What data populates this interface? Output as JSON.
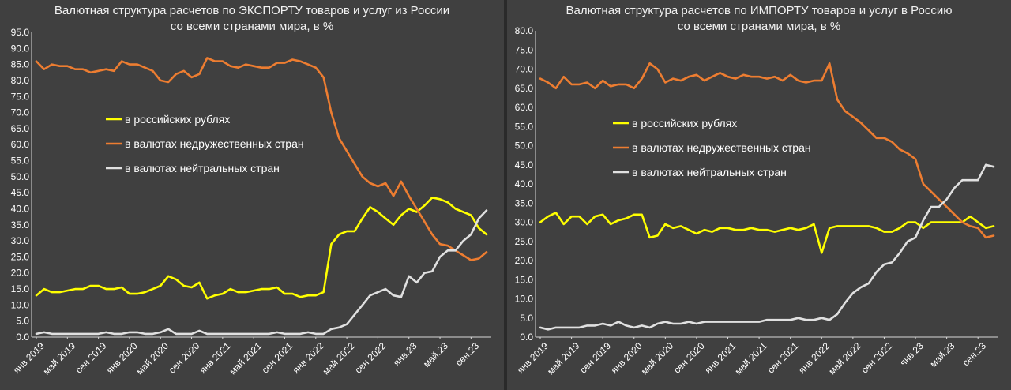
{
  "chart_data": [
    {
      "type": "line",
      "title": "Валютная структура расчетов по ЭКСПОРТУ товаров и услуг из России",
      "subtitle": "со всеми странами мира, в %",
      "ylim": [
        0,
        95
      ],
      "yticks": [
        "0.0",
        "5.0",
        "10.0",
        "15.0",
        "20.0",
        "25.0",
        "30.0",
        "35.0",
        "40.0",
        "45.0",
        "50.0",
        "55.0",
        "60.0",
        "65.0",
        "70.0",
        "75.0",
        "80.0",
        "85.0",
        "90.0",
        "95.0"
      ],
      "xticks": [
        "янв 2019",
        "май 2019",
        "сен 2019",
        "янв 2020",
        "май 2020",
        "сен 2020",
        "янв 2021",
        "май 2021",
        "сен 2021",
        "янв 2022",
        "май 2022",
        "сен 2022",
        "янв.23",
        "май.23",
        "сен.23"
      ],
      "x": [
        "2019-01",
        "2019-02",
        "2019-03",
        "2019-04",
        "2019-05",
        "2019-06",
        "2019-07",
        "2019-08",
        "2019-09",
        "2019-10",
        "2019-11",
        "2019-12",
        "2020-01",
        "2020-02",
        "2020-03",
        "2020-04",
        "2020-05",
        "2020-06",
        "2020-07",
        "2020-08",
        "2020-09",
        "2020-10",
        "2020-11",
        "2020-12",
        "2021-01",
        "2021-02",
        "2021-03",
        "2021-04",
        "2021-05",
        "2021-06",
        "2021-07",
        "2021-08",
        "2021-09",
        "2021-10",
        "2021-11",
        "2021-12",
        "2022-01",
        "2022-02",
        "2022-03",
        "2022-04",
        "2022-05",
        "2022-06",
        "2022-07",
        "2022-08",
        "2022-09",
        "2022-10",
        "2022-11",
        "2022-12",
        "2023-01",
        "2023-02",
        "2023-03",
        "2023-04",
        "2023-05",
        "2023-06",
        "2023-07",
        "2023-08",
        "2023-09",
        "2023-10",
        "2023-11"
      ],
      "legend_position": "center-left",
      "grid": false,
      "series": [
        {
          "name": "в российских рублях",
          "color": "#ffff00",
          "values": [
            13,
            15,
            14,
            14,
            14.5,
            15,
            15,
            16,
            16,
            15,
            15,
            15.5,
            13.5,
            13.5,
            14,
            15,
            16,
            19,
            18,
            16,
            15.5,
            17,
            12,
            13,
            13.5,
            15,
            14,
            14,
            14.5,
            15,
            15,
            15.5,
            13.5,
            13.5,
            12.5,
            13,
            13,
            14,
            29,
            32,
            33,
            33,
            37,
            40.5,
            39,
            37,
            35,
            38,
            40,
            39,
            41,
            43.5,
            43,
            42,
            40,
            39,
            38,
            34,
            32
          ]
        },
        {
          "name": "в валютах недружественных стран",
          "color": "#ed7d31",
          "values": [
            86,
            83.5,
            85,
            84.5,
            84.5,
            83.5,
            83.5,
            82.5,
            83,
            83.5,
            83,
            86,
            85,
            85,
            84,
            83,
            80,
            79.5,
            82,
            83,
            81,
            82,
            87,
            86,
            86,
            84.5,
            84,
            85,
            84.5,
            84,
            84,
            85.5,
            85.5,
            86.5,
            86,
            85,
            84,
            81,
            70,
            62,
            58,
            54,
            50,
            48,
            47,
            48,
            44,
            48.5,
            44,
            40,
            36,
            32,
            29,
            28.5,
            27,
            25.5,
            24,
            24.5,
            26.5
          ]
        },
        {
          "name": "в валютах нейтральных стран",
          "color": "#e0e0e0",
          "values": [
            1,
            1.5,
            1,
            1,
            1,
            1,
            1,
            1,
            1,
            1.5,
            1,
            1,
            1.5,
            1.5,
            1,
            1,
            1.5,
            2.5,
            1,
            1,
            1,
            2,
            1,
            1,
            1,
            1,
            1,
            1,
            1,
            1,
            1,
            1.5,
            1,
            1,
            1,
            1.5,
            1,
            1,
            2.5,
            3,
            4,
            7,
            10,
            13,
            14,
            15,
            13,
            12.5,
            19,
            17,
            20,
            20.5,
            25,
            27,
            27,
            30,
            32,
            37,
            39.5
          ]
        }
      ]
    },
    {
      "type": "line",
      "title": "Валютная структура расчетов по ИМПОРТУ товаров и услуг в Россию",
      "subtitle": "со всеми странами мира, в %",
      "ylim": [
        0,
        80
      ],
      "yticks": [
        "0.0",
        "5.0",
        "10.0",
        "15.0",
        "20.0",
        "25.0",
        "30.0",
        "35.0",
        "40.0",
        "45.0",
        "50.0",
        "55.0",
        "60.0",
        "65.0",
        "70.0",
        "75.0",
        "80.0"
      ],
      "xticks": [
        "янв 2019",
        "май 2019",
        "сен 2019",
        "янв 2020",
        "май 2020",
        "сен 2020",
        "янв 2021",
        "май 2021",
        "сен 2021",
        "янв 2022",
        "май 2022",
        "сен 2022",
        "янв.23",
        "май.23",
        "сен.23"
      ],
      "x": [
        "2019-01",
        "2019-02",
        "2019-03",
        "2019-04",
        "2019-05",
        "2019-06",
        "2019-07",
        "2019-08",
        "2019-09",
        "2019-10",
        "2019-11",
        "2019-12",
        "2020-01",
        "2020-02",
        "2020-03",
        "2020-04",
        "2020-05",
        "2020-06",
        "2020-07",
        "2020-08",
        "2020-09",
        "2020-10",
        "2020-11",
        "2020-12",
        "2021-01",
        "2021-02",
        "2021-03",
        "2021-04",
        "2021-05",
        "2021-06",
        "2021-07",
        "2021-08",
        "2021-09",
        "2021-10",
        "2021-11",
        "2021-12",
        "2022-01",
        "2022-02",
        "2022-03",
        "2022-04",
        "2022-05",
        "2022-06",
        "2022-07",
        "2022-08",
        "2022-09",
        "2022-10",
        "2022-11",
        "2022-12",
        "2023-01",
        "2023-02",
        "2023-03",
        "2023-04",
        "2023-05",
        "2023-06",
        "2023-07",
        "2023-08",
        "2023-09",
        "2023-10",
        "2023-11"
      ],
      "legend_position": "center-left",
      "grid": false,
      "series": [
        {
          "name": "в российских рублях",
          "color": "#ffff00",
          "values": [
            30,
            31.5,
            32.5,
            29.5,
            31.5,
            31.5,
            29.5,
            31.5,
            32,
            29.5,
            30.5,
            31,
            32,
            32,
            26,
            26.5,
            29.5,
            28.5,
            29,
            28,
            27,
            28,
            27.5,
            28.5,
            28.5,
            28,
            28,
            28.5,
            28,
            28,
            27.5,
            28,
            28.5,
            28,
            28.5,
            29.5,
            22,
            28.5,
            29,
            29,
            29,
            29,
            29,
            28.5,
            27.5,
            27.5,
            28.5,
            30,
            30,
            28.5,
            30,
            30,
            30,
            30,
            30,
            31.5,
            30,
            28.5,
            29
          ]
        },
        {
          "name": "в валютах недружественных стран",
          "color": "#ed7d31",
          "values": [
            67.5,
            66.5,
            65,
            68,
            66,
            66,
            66.5,
            65,
            67,
            65.5,
            66,
            66,
            65,
            67.5,
            71.5,
            70,
            66.5,
            67.5,
            67,
            68,
            68.5,
            67,
            68,
            69,
            68,
            67.5,
            68.5,
            68,
            68,
            67.5,
            68,
            67,
            68.5,
            67,
            66.5,
            67,
            67,
            71.5,
            62,
            59,
            57.5,
            56,
            54,
            52,
            52,
            51,
            49,
            48,
            46.5,
            40,
            38,
            36,
            34,
            32,
            30,
            29,
            28.5,
            26,
            26.5
          ]
        },
        {
          "name": "в валютах нейтральных стран",
          "color": "#e0e0e0",
          "values": [
            2.5,
            2,
            2.5,
            2.5,
            2.5,
            2.5,
            3,
            3,
            3.5,
            3,
            4,
            3,
            2.5,
            3,
            2.5,
            3.5,
            4,
            3.5,
            3.5,
            4,
            3.5,
            4,
            4,
            4,
            4,
            4,
            4,
            4,
            4,
            4.5,
            4.5,
            4.5,
            4.5,
            5,
            4.5,
            4.5,
            5,
            4.5,
            6,
            9,
            11.5,
            13,
            14,
            17,
            19,
            19.5,
            22,
            25,
            26,
            30.5,
            34,
            34,
            36,
            39,
            41,
            41,
            41,
            45,
            44.5
          ]
        }
      ]
    }
  ]
}
